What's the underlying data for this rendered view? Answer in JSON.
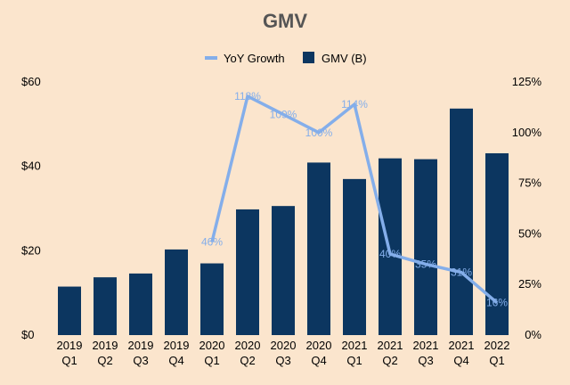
{
  "chart_data": {
    "type": "bar+line",
    "title": "GMV",
    "categories": [
      [
        "2019",
        "Q1"
      ],
      [
        "2019",
        "Q2"
      ],
      [
        "2019",
        "Q3"
      ],
      [
        "2019",
        "Q4"
      ],
      [
        "2020",
        "Q1"
      ],
      [
        "2020",
        "Q2"
      ],
      [
        "2020",
        "Q3"
      ],
      [
        "2020",
        "Q4"
      ],
      [
        "2021",
        "Q1"
      ],
      [
        "2021",
        "Q2"
      ],
      [
        "2021",
        "Q3"
      ],
      [
        "2021",
        "Q4"
      ],
      [
        "2022",
        "Q1"
      ]
    ],
    "series": [
      {
        "name": "GMV (B)",
        "type": "bar",
        "axis": "left",
        "color": "#0c3660",
        "values": [
          11.5,
          13.7,
          14.6,
          20.3,
          17.0,
          29.8,
          30.6,
          40.9,
          37.0,
          41.9,
          41.7,
          53.7,
          43.1
        ]
      },
      {
        "name": "YoY Growth",
        "type": "line",
        "axis": "right",
        "color": "#84aeea",
        "values": [
          null,
          null,
          null,
          null,
          0.46,
          1.18,
          1.09,
          1.0,
          1.14,
          0.4,
          0.35,
          0.31,
          0.16
        ],
        "labels": [
          null,
          null,
          null,
          null,
          "46%",
          "118%",
          "109%",
          "100%",
          "114%",
          "40%",
          "35%",
          "31%",
          "16%"
        ]
      }
    ],
    "legend": {
      "position": "top",
      "order": [
        "YoY Growth",
        "GMV (B)"
      ]
    },
    "y_left": {
      "range": [
        0,
        60
      ],
      "ticks": [
        "$0",
        "$20",
        "$40",
        "$60"
      ],
      "tick_values": [
        0,
        20,
        40,
        60
      ]
    },
    "y_right": {
      "range": [
        0,
        1.25
      ],
      "ticks": [
        "0%",
        "25%",
        "50%",
        "75%",
        "100%",
        "125%"
      ],
      "tick_values": [
        0,
        0.25,
        0.5,
        0.75,
        1.0,
        1.25
      ]
    },
    "grid": false,
    "background": "#fbe5cd"
  }
}
